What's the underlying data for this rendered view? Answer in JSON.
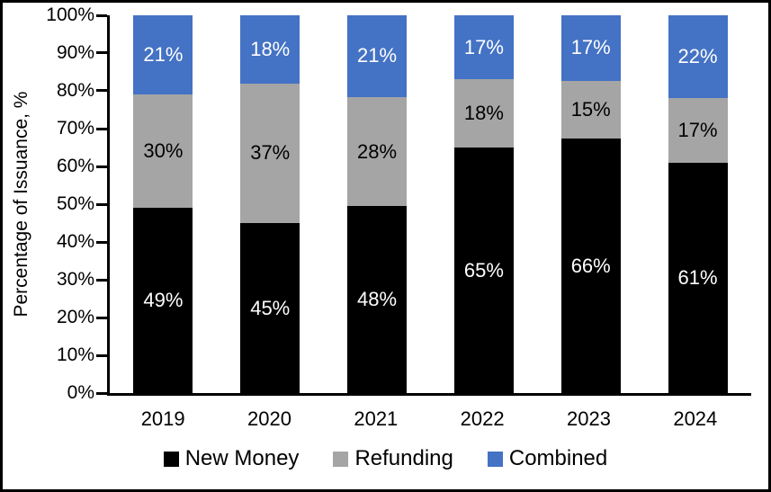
{
  "frame": {
    "border_color": "#000000",
    "background": "#FFFFFF"
  },
  "chart_data": {
    "type": "bar",
    "variant": "stacked-column",
    "title": "",
    "xlabel": "",
    "ylabel": "Percentage of Issuance, %",
    "ylim": [
      0,
      100
    ],
    "ytick_step": 10,
    "ytick_labels": [
      "0%",
      "10%",
      "20%",
      "30%",
      "40%",
      "50%",
      "60%",
      "70%",
      "80%",
      "90%",
      "100%"
    ],
    "categories": [
      "2019",
      "2020",
      "2021",
      "2022",
      "2023",
      "2024"
    ],
    "series": [
      {
        "name": "New Money",
        "color": "#000000",
        "label_color": "#FFFFFF",
        "values": [
          49,
          45,
          48,
          65,
          66,
          61
        ]
      },
      {
        "name": "Refunding",
        "color": "#A5A5A5",
        "label_color": "#000000",
        "values": [
          30,
          37,
          28,
          18,
          15,
          17
        ]
      },
      {
        "name": "Combined",
        "color": "#4472C4",
        "label_color": "#FFFFFF",
        "values": [
          21,
          18,
          21,
          17,
          17,
          22
        ]
      }
    ],
    "data_label_suffix": "%",
    "legend_position": "bottom",
    "grid": false,
    "axis_color": "#000000"
  }
}
